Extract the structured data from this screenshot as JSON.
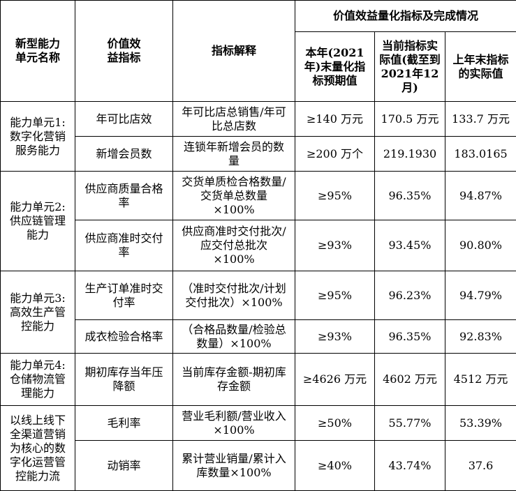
{
  "header": {
    "unit": "新型能力单元名称",
    "indicator": "价值效益指标",
    "explain": "指标解释",
    "group": "价值效益量化指标及完成情况",
    "target": "本年(2021年)末量化指标预期值",
    "actual": "当前指标实际值(截至到2021年12月)",
    "last": "上年末指标的实际值"
  },
  "units": [
    "能力单元1:数字化营销服务能力",
    "能力单元2:供应链管理能力",
    "能力单元3:高效生产管控能力",
    "能力单元4:仓储物流管理能力",
    "以线上线下全渠道营销为核心的数字化运营管控能力流"
  ],
  "rows": [
    {
      "indicator": "年可比店效",
      "explain": "年可比店总销售/年可比总店数",
      "target": "≥140 万元",
      "actual": "170.5 万元",
      "last": "133.7 万元"
    },
    {
      "indicator": "新增会员数",
      "explain": "连锁年新增会员的数量",
      "target": "≥200 万个",
      "actual": "219.1930",
      "last": "183.0165"
    },
    {
      "indicator": "供应商质量合格率",
      "explain": "交货单质检合格数量/交货单总数量×100%",
      "target": "≥95%",
      "actual": "96.35%",
      "last": "94.87%"
    },
    {
      "indicator": "供应商准时交付率",
      "explain": "供应商准时交付批次/应交付总批次×100%",
      "target": "≥93%",
      "actual": "93.45%",
      "last": "90.80%"
    },
    {
      "indicator": "生产订单准时交付率",
      "explain": "（准时交付批次/计划交付批次）×100%",
      "target": "≥95%",
      "actual": "96.23%",
      "last": "94.79%"
    },
    {
      "indicator": "成衣检验合格率",
      "explain": "（合格品数量/检验总数量）×100%",
      "target": "≥93%",
      "actual": "96.35%",
      "last": "92.83%"
    },
    {
      "indicator": "期初库存当年压降额",
      "explain": "当前库存金额-期初库存金额",
      "target": "≥4626 万元",
      "actual": "4602 万元",
      "last": "4512 万元"
    },
    {
      "indicator": "毛利率",
      "explain": "营业毛利额/营业收入×100%",
      "target": "≥50%",
      "actual": "55.77%",
      "last": "53.39%"
    },
    {
      "indicator": "动销率",
      "explain": "累计营业销量/累计入库数量×100%",
      "target": "≥40%",
      "actual": "43.74%",
      "last": "37.6"
    }
  ]
}
